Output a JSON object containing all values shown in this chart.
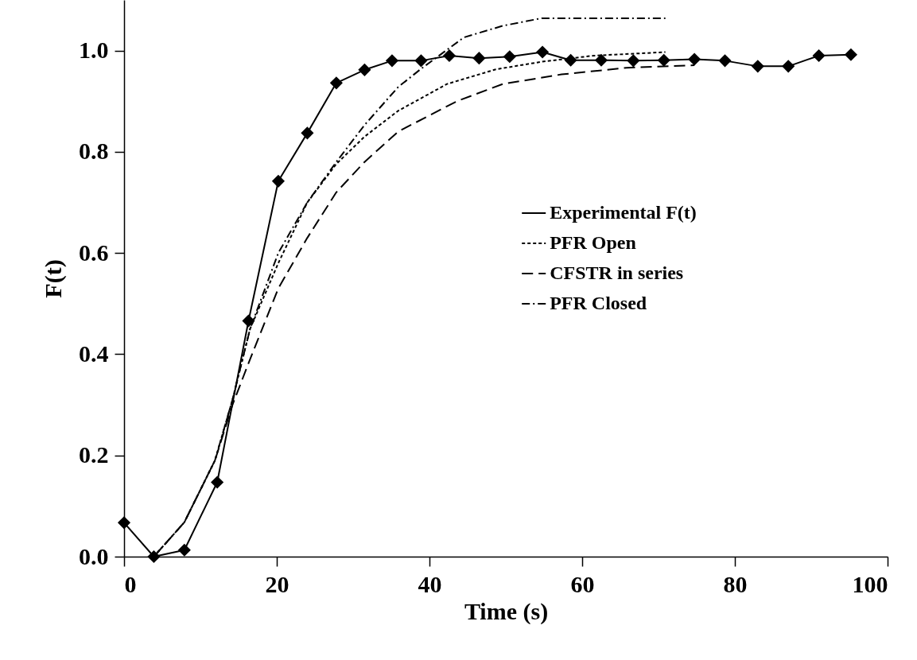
{
  "chart_data": {
    "type": "line",
    "xlabel": "Time (s)",
    "ylabel": "F(t)",
    "xlim": [
      0,
      100
    ],
    "xticks": [
      0,
      20,
      40,
      60,
      80,
      100
    ],
    "ylim": [
      0,
      1.1
    ],
    "yticks": [
      {
        "value": 0,
        "label": "0.0"
      },
      {
        "value": 0.2,
        "label": "0.2"
      },
      {
        "value": 0.4,
        "label": "0.4"
      },
      {
        "value": 0.6,
        "label": "0.6"
      },
      {
        "value": 0.8,
        "label": "0.8"
      },
      {
        "value": 1,
        "label": "1.0"
      }
    ],
    "grid": false,
    "legend": "right",
    "series": [
      {
        "name": "Experimental F(t)",
        "color": "#000000",
        "marker": "diamond",
        "line_style": "solid",
        "x": [
          0,
          3.9,
          7.9,
          12.2,
          16.3,
          20.2,
          24.0,
          27.8,
          31.5,
          35.1,
          38.9,
          42.6,
          46.5,
          50.5,
          54.8,
          58.5,
          62.5,
          66.7,
          70.7,
          74.7,
          78.7,
          83.0,
          87.0,
          91.0,
          95.2
        ],
        "values": [
          0.067,
          0,
          0.013,
          0.147,
          0.466,
          0.742,
          0.837,
          0.936,
          0.962,
          0.98,
          0.98,
          0.99,
          0.985,
          0.988,
          0.997,
          0.981,
          0.981,
          0.98,
          0.981,
          0.983,
          0.98,
          0.969,
          0.969,
          0.99,
          0.992
        ]
      },
      {
        "name": "PFR Open",
        "color": "#000000",
        "marker": "none",
        "line_style": "dotted",
        "x": [
          3.9,
          7.9,
          11.9,
          14.2,
          16.5,
          20.2,
          24.0,
          27.8,
          31.5,
          35.9,
          42.3,
          48.7,
          54.7,
          61.5,
          70.9
        ],
        "values": [
          0,
          0.068,
          0.19,
          0.31,
          0.45,
          0.58,
          0.7,
          0.776,
          0.83,
          0.881,
          0.934,
          0.963,
          0.978,
          0.99,
          0.997
        ]
      },
      {
        "name": "CFSTR in series",
        "color": "#000000",
        "marker": "none",
        "line_style": "dashed",
        "x": [
          3.9,
          7.9,
          11.9,
          14.2,
          16.5,
          20.2,
          24.0,
          27.8,
          31.5,
          35.9,
          43.6,
          49.6,
          57.3,
          65.8,
          74.7
        ],
        "values": [
          0,
          0.068,
          0.19,
          0.3,
          0.39,
          0.53,
          0.63,
          0.72,
          0.78,
          0.84,
          0.9,
          0.934,
          0.953,
          0.966,
          0.971
        ]
      },
      {
        "name": "PFR Closed",
        "color": "#000000",
        "marker": "none",
        "line_style": "dashdot",
        "x": [
          3.9,
          7.9,
          11.9,
          14.2,
          16.5,
          20.2,
          24.0,
          27.8,
          31.5,
          35.9,
          38.9,
          44.5,
          49.6,
          54.7,
          70.9
        ],
        "values": [
          0,
          0.068,
          0.19,
          0.31,
          0.45,
          0.6,
          0.7,
          0.78,
          0.853,
          0.928,
          0.964,
          1.026,
          1.049,
          1.064,
          1.064
        ]
      }
    ]
  }
}
